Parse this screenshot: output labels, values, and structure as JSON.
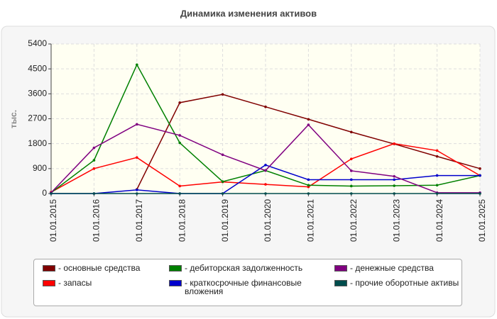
{
  "chart_data": {
    "type": "line",
    "title": "Динамика изменения активов",
    "y_label": "тыс.",
    "categories": [
      "01.01.2015",
      "01.01.2016",
      "01.01.2017",
      "01.01.2018",
      "01.01.2019",
      "01.01.2020",
      "01.01.2021",
      "01.01.2022",
      "01.01.2023",
      "01.01.2024",
      "01.01.2025"
    ],
    "series": [
      {
        "name": "- основные средства",
        "color": "#800000",
        "values": [
          null,
          null,
          150,
          3280,
          3580,
          3130,
          2680,
          2220,
          1790,
          1340,
          900
        ]
      },
      {
        "name": "- запасы",
        "color": "#ff0000",
        "values": [
          50,
          900,
          1300,
          270,
          420,
          330,
          240,
          1250,
          1800,
          1550,
          650
        ]
      },
      {
        "name": "- дебиторская задолженность",
        "color": "#008000",
        "values": [
          30,
          1200,
          4650,
          1830,
          430,
          830,
          300,
          270,
          280,
          300,
          650
        ]
      },
      {
        "name": "- краткосрочные финансовые вложения",
        "color": "#0000cc",
        "values": [
          0,
          0,
          130,
          0,
          0,
          1030,
          500,
          500,
          500,
          650,
          650
        ]
      },
      {
        "name": "- денежные средства",
        "color": "#800080",
        "values": [
          30,
          1650,
          2500,
          2100,
          1400,
          830,
          2480,
          820,
          620,
          30,
          30
        ]
      },
      {
        "name": "- прочие оборотные активы",
        "color": "#004d4d",
        "values": [
          0,
          0,
          0,
          0,
          0,
          0,
          0,
          0,
          0,
          0,
          0
        ]
      }
    ],
    "ylim": [
      0,
      5400
    ],
    "yticks": [
      0,
      900,
      1800,
      2700,
      3600,
      4500,
      5400
    ],
    "grid": true
  }
}
